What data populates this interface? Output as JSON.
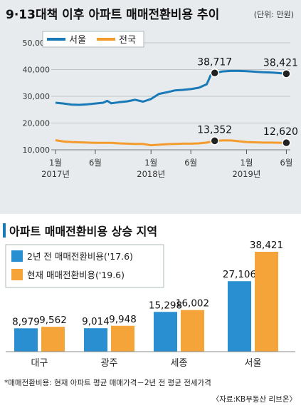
{
  "chart_data": [
    {
      "type": "line",
      "title": "9·13대책 이후 아파트 매매전환비용 추이",
      "unit_note": "(단위: 만원)",
      "yticks": [
        "50,000",
        "40,000",
        "30,000",
        "20,000",
        "10,000"
      ],
      "ylim": [
        10000,
        50000
      ],
      "x_tick_labels": [
        {
          "label": "1월",
          "sub": "2017년",
          "t": 0
        },
        {
          "label": "6월",
          "sub": "",
          "t": 5
        },
        {
          "label": "1월",
          "sub": "2018년",
          "t": 12
        },
        {
          "label": "6월",
          "sub": "",
          "t": 17
        },
        {
          "label": "1월",
          "sub": "2019년",
          "t": 24
        },
        {
          "label": "6월",
          "sub": "",
          "t": 29
        }
      ],
      "t_range": [
        0,
        29.5
      ],
      "legend": [
        "서울",
        "전국"
      ],
      "series": [
        {
          "name": "서울",
          "color": "#1a7ab8",
          "points": [
            [
              0,
              27600
            ],
            [
              1,
              27300
            ],
            [
              2,
              26900
            ],
            [
              3,
              26800
            ],
            [
              4,
              27000
            ],
            [
              5,
              27300
            ],
            [
              6,
              27600
            ],
            [
              6.5,
              28300
            ],
            [
              7,
              27400
            ],
            [
              8,
              27800
            ],
            [
              9,
              28100
            ],
            [
              10,
              28700
            ],
            [
              11,
              28000
            ],
            [
              12,
              29000
            ],
            [
              13,
              30900
            ],
            [
              14,
              31500
            ],
            [
              15,
              32200
            ],
            [
              16,
              32400
            ],
            [
              17,
              32700
            ],
            [
              18,
              33200
            ],
            [
              19,
              34500
            ],
            [
              19.5,
              37900
            ],
            [
              20,
              38717
            ],
            [
              21,
              39300
            ],
            [
              22,
              39500
            ],
            [
              23,
              39500
            ],
            [
              24,
              39400
            ],
            [
              25,
              39200
            ],
            [
              26,
              39000
            ],
            [
              27,
              38900
            ],
            [
              28,
              38700
            ],
            [
              29,
              38421
            ]
          ],
          "highlight": [
            [
              20,
              38717
            ],
            [
              29,
              38421
            ]
          ],
          "labels": [
            "38,717",
            "38,421"
          ]
        },
        {
          "name": "전국",
          "color": "#f39c2d",
          "points": [
            [
              0,
              13600
            ],
            [
              1,
              13100
            ],
            [
              2,
              12900
            ],
            [
              3,
              12800
            ],
            [
              4,
              12700
            ],
            [
              5,
              12600
            ],
            [
              6,
              12600
            ],
            [
              7,
              12600
            ],
            [
              8,
              12400
            ],
            [
              9,
              12300
            ],
            [
              10,
              12200
            ],
            [
              11,
              12200
            ],
            [
              12,
              11700
            ],
            [
              13,
              11900
            ],
            [
              14,
              12100
            ],
            [
              15,
              12200
            ],
            [
              16,
              12300
            ],
            [
              17,
              12300
            ],
            [
              18,
              12400
            ],
            [
              19,
              12700
            ],
            [
              20,
              13352
            ],
            [
              21,
              13500
            ],
            [
              22,
              13500
            ],
            [
              23,
              13200
            ],
            [
              24,
              12900
            ],
            [
              25,
              12800
            ],
            [
              26,
              12700
            ],
            [
              27,
              12700
            ],
            [
              28,
              12650
            ],
            [
              29,
              12620
            ]
          ],
          "highlight": [
            [
              20,
              13352
            ],
            [
              29,
              12620
            ]
          ],
          "labels": [
            "13,352",
            "12,620"
          ]
        }
      ]
    },
    {
      "type": "bar",
      "title": "아파트 매매전환비용 상승 지역",
      "categories": [
        "대구",
        "광주",
        "세종",
        "서울"
      ],
      "ylim": [
        0,
        38421
      ],
      "series": [
        {
          "name": "2년 전 매매전환비용('17.6)",
          "color": "#2a8fd0",
          "values": [
            8979,
            9014,
            15298,
            27106
          ],
          "labels": [
            "8,979",
            "9,014",
            "15,298",
            "27,106"
          ]
        },
        {
          "name": "현재 매매전환비용('19.6)",
          "color": "#f5a43a",
          "values": [
            9562,
            9948,
            16002,
            38421
          ],
          "labels": [
            "9,562",
            "9,948",
            "16,002",
            "38,421"
          ]
        }
      ],
      "footnote": "*매매전환비용: 현재 아파트 평균 매매가격－2년 전 평균 전세가격",
      "source": "〈자료:KB부동산 리브온〉"
    }
  ]
}
